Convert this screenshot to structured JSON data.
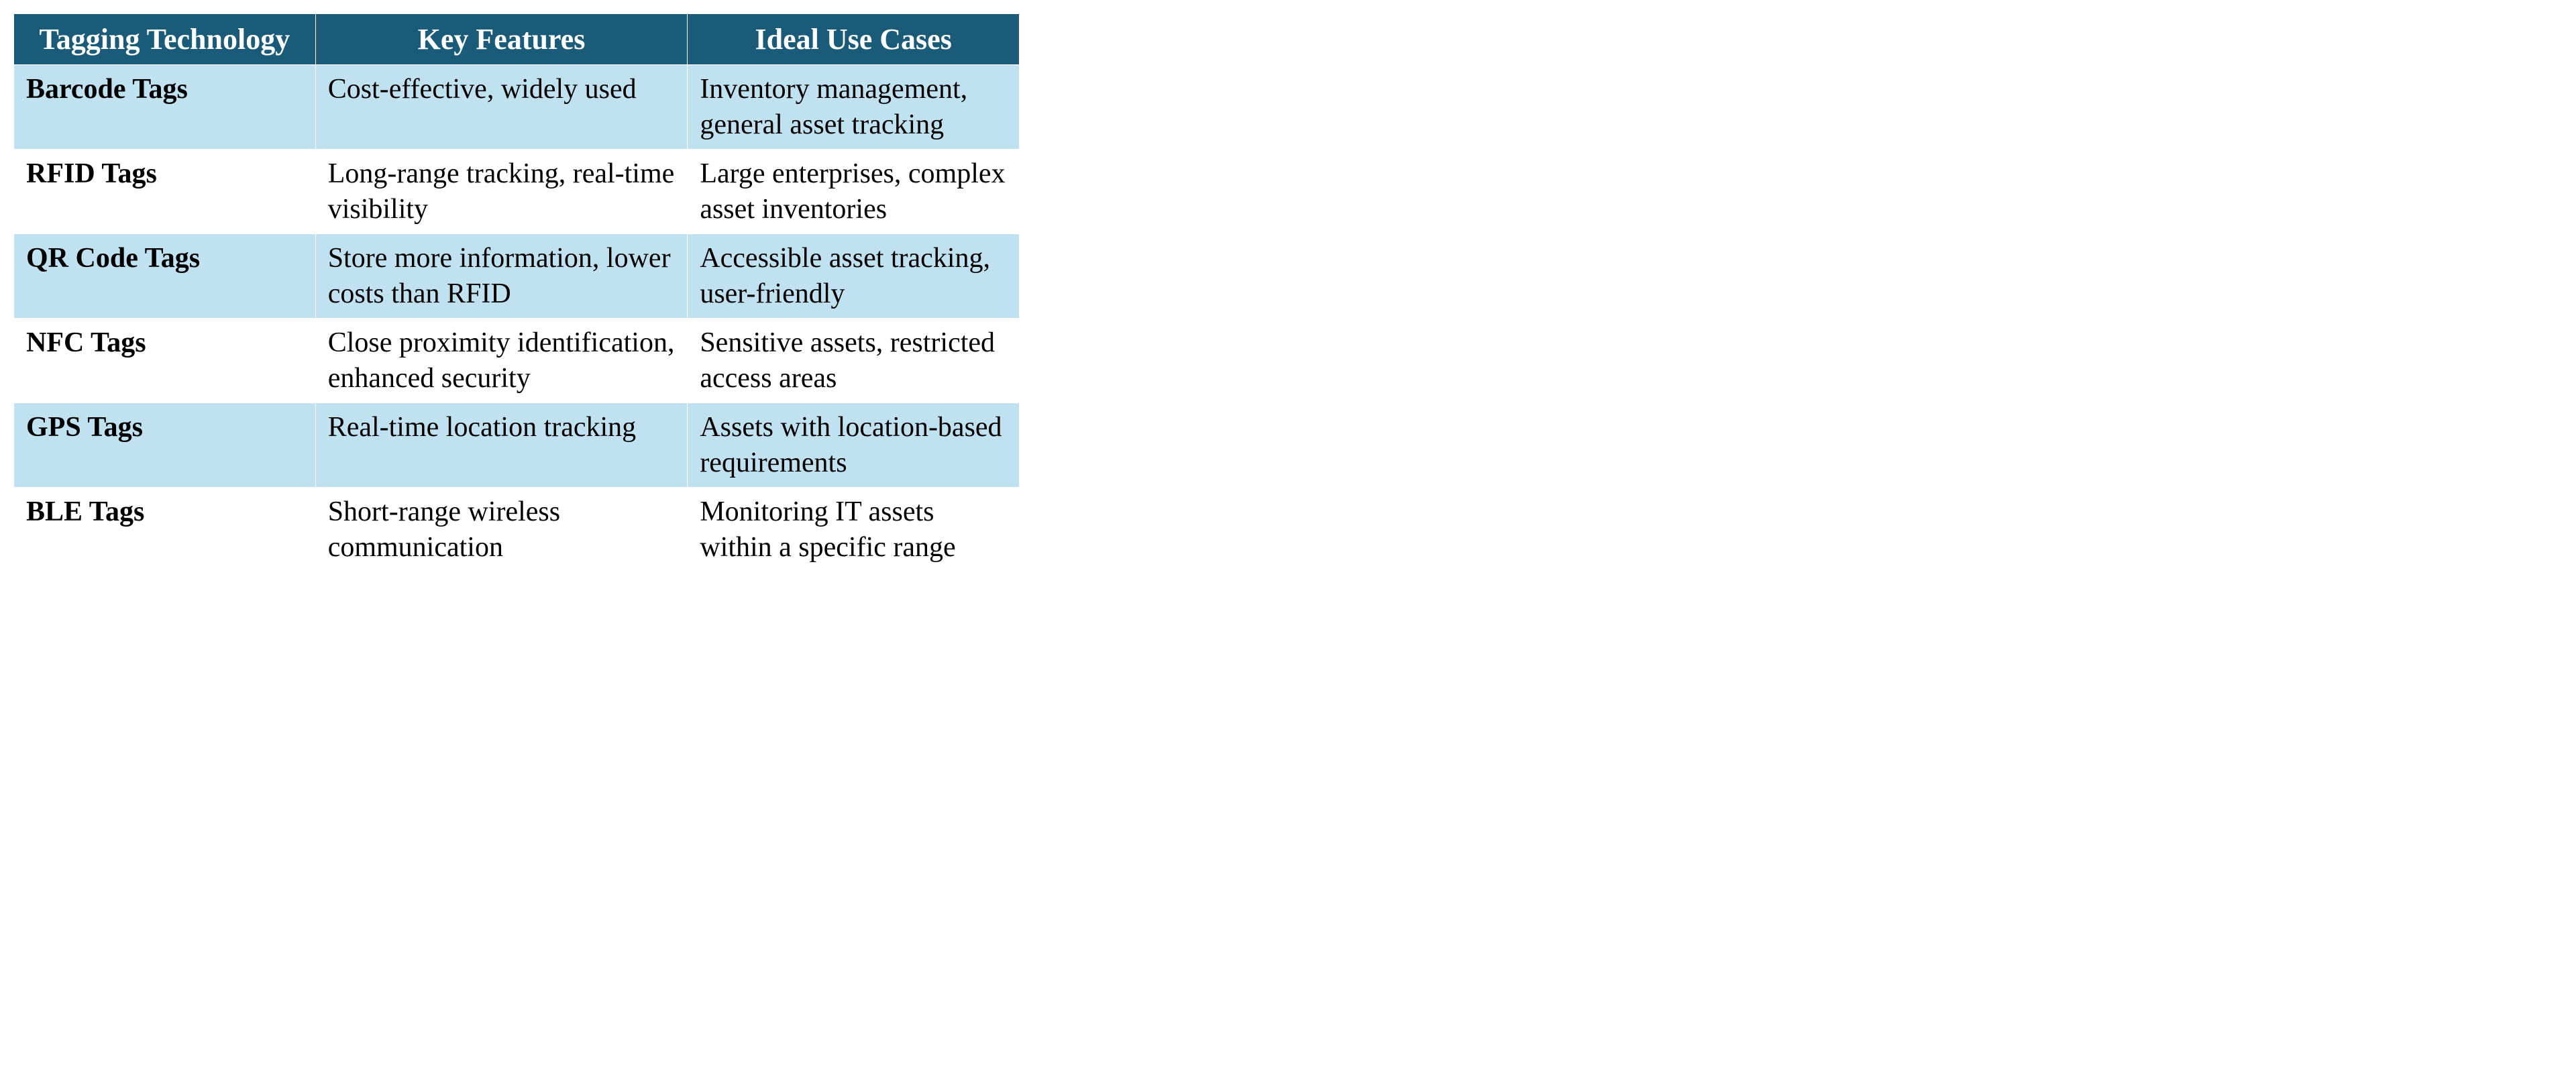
{
  "table": {
    "type": "table",
    "header_bg": "#1a5b7a",
    "header_fg": "#ffffff",
    "row_alt_bg": "#bfe1f0",
    "row_bg": "#ffffff",
    "border_color": "#ffffff",
    "font_family": "Times New Roman",
    "header_fontsize_pt": 33,
    "cell_fontsize_pt": 32,
    "columns": [
      {
        "label": "Tagging Technology",
        "width_pct": 30,
        "align": "left",
        "header_align": "center"
      },
      {
        "label": "Key Features",
        "width_pct": 37,
        "align": "left",
        "header_align": "center"
      },
      {
        "label": "Ideal Use Cases",
        "width_pct": 33,
        "align": "left",
        "header_align": "center"
      }
    ],
    "rows": [
      {
        "tech": "Barcode Tags",
        "features": "Cost-effective, widely used",
        "use": "Inventory management, general asset tracking"
      },
      {
        "tech": "RFID Tags",
        "features": "Long-range tracking, real-time visibility",
        "use": "Large enterprises, complex asset inventories"
      },
      {
        "tech": "QR Code Tags",
        "features": "Store more information, lower costs than RFID",
        "use": "Accessible asset tracking, user-friendly"
      },
      {
        "tech": "NFC Tags",
        "features": "Close proximity identification, enhanced security",
        "use": "Sensitive assets, restricted access areas"
      },
      {
        "tech": "GPS Tags",
        "features": "Real-time location tracking",
        "use": "Assets with location-based requirements"
      },
      {
        "tech": "BLE Tags",
        "features": "Short-range wireless communication",
        "use": "Monitoring IT assets within a specific range"
      }
    ]
  }
}
